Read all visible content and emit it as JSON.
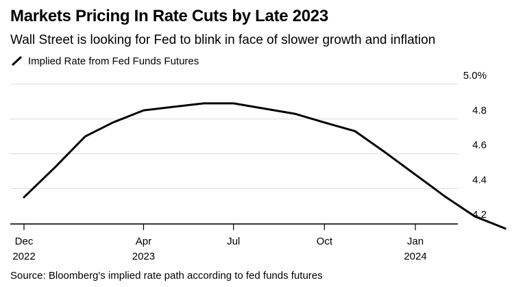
{
  "title": "Markets Pricing In Rate Cuts by Late 2023",
  "subtitle": "Wall Street is looking for Fed to blink in face of slower growth and inflation",
  "source": "Source: Bloomberg's implied rate path according to fed funds futures",
  "colors": {
    "line": "#000000",
    "grid": "#d9d9d9",
    "axis": "#000000",
    "text": "#000000"
  },
  "chart_data": {
    "type": "line",
    "title": "Markets Pricing In Rate Cuts by Late 2023",
    "subtitle": "Wall Street is looking for Fed to blink in face of slower growth and inflation",
    "xlabel": "",
    "ylabel": "",
    "ylim": [
      4.15,
      5.0
    ],
    "xlim": [
      "2022-12-01",
      "2024-03-01"
    ],
    "grid": true,
    "legend": "top-left",
    "series": [
      {
        "name": "Implied Rate from Fed Funds Futures",
        "points": [
          {
            "x": "2022-12-01",
            "y": 4.35
          },
          {
            "x": "2023-01-01",
            "y": 4.52
          },
          {
            "x": "2023-02-01",
            "y": 4.7
          },
          {
            "x": "2023-03-01",
            "y": 4.78
          },
          {
            "x": "2023-04-01",
            "y": 4.85
          },
          {
            "x": "2023-05-01",
            "y": 4.87
          },
          {
            "x": "2023-06-01",
            "y": 4.89
          },
          {
            "x": "2023-07-01",
            "y": 4.89
          },
          {
            "x": "2023-08-01",
            "y": 4.86
          },
          {
            "x": "2023-09-01",
            "y": 4.83
          },
          {
            "x": "2023-10-01",
            "y": 4.78
          },
          {
            "x": "2023-11-01",
            "y": 4.73
          },
          {
            "x": "2023-12-01",
            "y": 4.61
          },
          {
            "x": "2024-01-01",
            "y": 4.48
          },
          {
            "x": "2024-02-01",
            "y": 4.35
          },
          {
            "x": "2024-03-01",
            "y": 4.24
          },
          {
            "x": "2024-04-01",
            "y": 4.17
          }
        ]
      }
    ],
    "y_ticks": [
      {
        "value": 5.0,
        "label": "5.0%"
      },
      {
        "value": 4.8,
        "label": "4.8"
      },
      {
        "value": 4.6,
        "label": "4.6"
      },
      {
        "value": 4.4,
        "label": "4.4"
      },
      {
        "value": 4.2,
        "label": "4.2"
      }
    ],
    "x_ticks": [
      {
        "date": "2022-12-01",
        "line1": "Dec",
        "line2": "2022"
      },
      {
        "date": "2023-04-01",
        "line1": "Apr",
        "line2": "2023"
      },
      {
        "date": "2023-07-01",
        "line1": "Jul",
        "line2": ""
      },
      {
        "date": "2023-10-01",
        "line1": "Oct",
        "line2": ""
      },
      {
        "date": "2024-01-01",
        "line1": "Jan",
        "line2": "2024"
      }
    ]
  }
}
